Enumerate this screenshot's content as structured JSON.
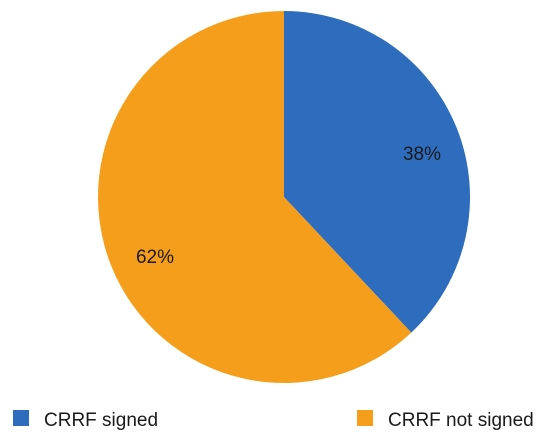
{
  "chart_data": {
    "type": "pie",
    "slices": [
      {
        "label": "CRRF signed",
        "value": 38,
        "display": "38%",
        "color": "#2E6DBD"
      },
      {
        "label": "CRRF not signed",
        "value": 62,
        "display": "62%",
        "color": "#F59E1C"
      }
    ],
    "legend": {
      "position": "bottom"
    }
  }
}
